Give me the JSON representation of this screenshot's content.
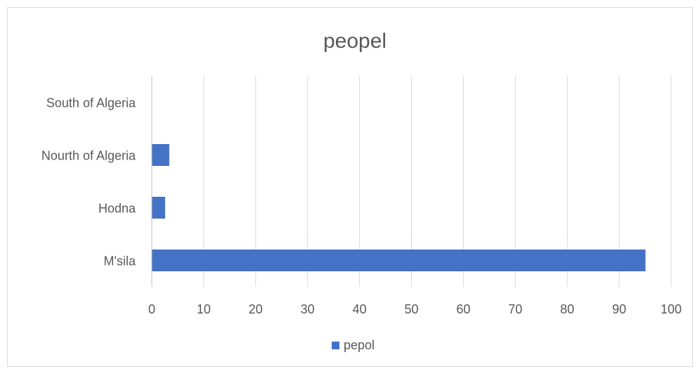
{
  "chart_data": {
    "type": "bar",
    "orientation": "horizontal",
    "title": "peopel",
    "categories": [
      "M'sila",
      "Hodna",
      "Nourth of Algeria",
      "South of Algeria"
    ],
    "series": [
      {
        "name": "pepol",
        "values": [
          95,
          2.5,
          3.3,
          0
        ],
        "color": "#4472C4"
      }
    ],
    "xlim": [
      0,
      100
    ],
    "xticks": [
      "0",
      "10",
      "20",
      "30",
      "40",
      "50",
      "60",
      "70",
      "80",
      "90",
      "100"
    ],
    "grid": true,
    "legend_position": "bottom"
  }
}
